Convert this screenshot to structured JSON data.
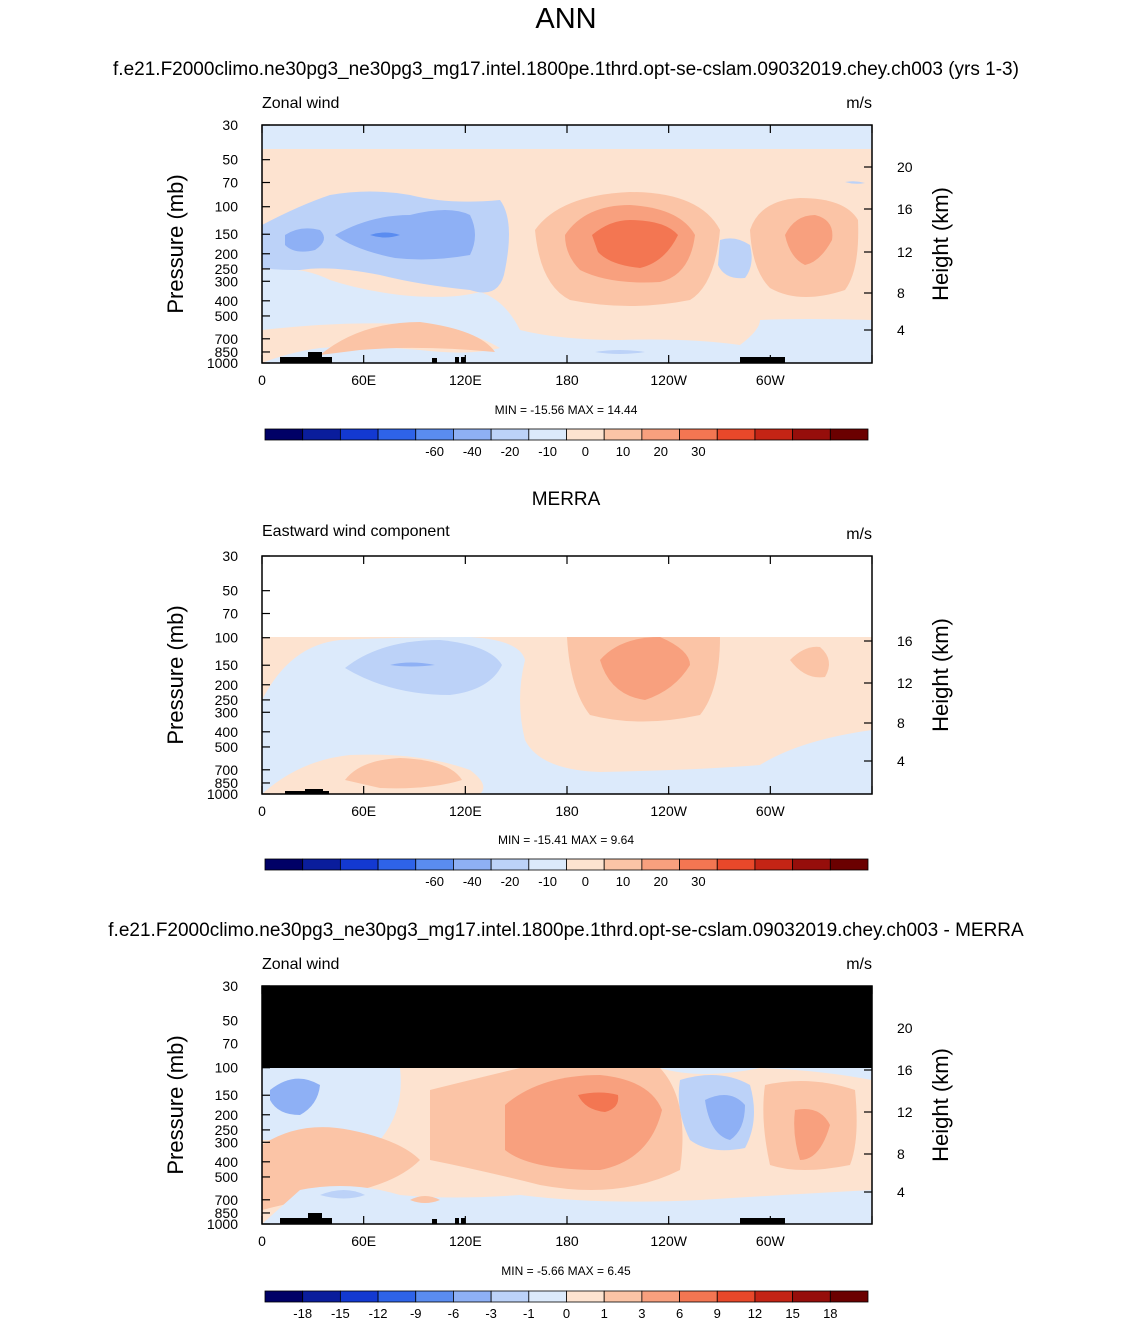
{
  "page_title": "ANN",
  "case_name": "f.e21.F2000climo.ne30pg3_ne30pg3_mg17.intel.1800pe.1thrd.opt-se-cslam.09032019.chey.ch003 (yrs 1-3)",
  "diff_title": "f.e21.F2000climo.ne30pg3_ne30pg3_mg17.intel.1800pe.1thrd.opt-se-cslam.09032019.chey.ch003 - MERRA",
  "obs_title": "MERRA",
  "units": "m/s",
  "ylabel_left": "Pressure (mb)",
  "ylabel_right": "Height (km)",
  "colors": {
    "levels_main": [
      "#000066",
      "#0a1d9c",
      "#1339d1",
      "#2e63e8",
      "#5a8cf0",
      "#8eb0f5",
      "#bcd2f8",
      "#dceafb",
      "#fde3d0",
      "#fbc4a6",
      "#f8a07e",
      "#f37652",
      "#e8482a",
      "#c42415",
      "#960e0b",
      "#6b0000"
    ],
    "levels_diff": [
      "#000066",
      "#0a1d9c",
      "#1339d1",
      "#2e63e8",
      "#5a8cf0",
      "#8eb0f5",
      "#bcd2f8",
      "#dceafb",
      "#fde3d0",
      "#fbc4a6",
      "#f8a07e",
      "#f37652",
      "#e8482a",
      "#c42415",
      "#960e0b",
      "#6b0000"
    ]
  },
  "chart_data": [
    {
      "type": "heatmap",
      "name": "model",
      "left_label": "Zonal wind",
      "right_label": "m/s",
      "x_ticks": [
        "0",
        "60E",
        "120E",
        "180",
        "120W",
        "60W"
      ],
      "y_ticks": [
        "30",
        "50",
        "70",
        "100",
        "150",
        "200",
        "250",
        "300",
        "400",
        "500",
        "700",
        "850",
        "1000"
      ],
      "height_ticks": [
        "20",
        "16",
        "12",
        "8",
        "4"
      ],
      "stats": "MIN = -15.56  MAX =  14.44",
      "colorbar_labels": [
        "-60",
        "-40",
        "-20",
        "-10",
        "0",
        "10",
        "20",
        "30"
      ],
      "data_min": -15.56,
      "data_max": 14.44
    },
    {
      "type": "heatmap",
      "name": "obs",
      "left_label": "Eastward wind component",
      "right_label": "m/s",
      "x_ticks": [
        "0",
        "60E",
        "120E",
        "180",
        "120W",
        "60W"
      ],
      "y_ticks": [
        "30",
        "50",
        "70",
        "100",
        "150",
        "200",
        "250",
        "300",
        "400",
        "500",
        "700",
        "850",
        "1000"
      ],
      "height_ticks": [
        "16",
        "12",
        "8",
        "4"
      ],
      "stats": "MIN = -15.41  MAX =  9.64",
      "colorbar_labels": [
        "-60",
        "-40",
        "-20",
        "-10",
        "0",
        "10",
        "20",
        "30"
      ],
      "data_min": -15.41,
      "data_max": 9.64
    },
    {
      "type": "heatmap",
      "name": "difference",
      "left_label": "Zonal wind",
      "right_label": "m/s",
      "x_ticks": [
        "0",
        "60E",
        "120E",
        "180",
        "120W",
        "60W"
      ],
      "y_ticks": [
        "30",
        "50",
        "70",
        "100",
        "150",
        "200",
        "250",
        "300",
        "400",
        "500",
        "700",
        "850",
        "1000"
      ],
      "height_ticks": [
        "20",
        "16",
        "12",
        "8",
        "4"
      ],
      "stats": "MIN = -5.66  MAX =  6.45",
      "colorbar_labels": [
        "-18",
        "-15",
        "-12",
        "-9",
        "-6",
        "-3",
        "-1",
        "0",
        "1",
        "3",
        "6",
        "9",
        "12",
        "15",
        "18"
      ],
      "data_min": -5.66,
      "data_max": 6.45
    }
  ]
}
